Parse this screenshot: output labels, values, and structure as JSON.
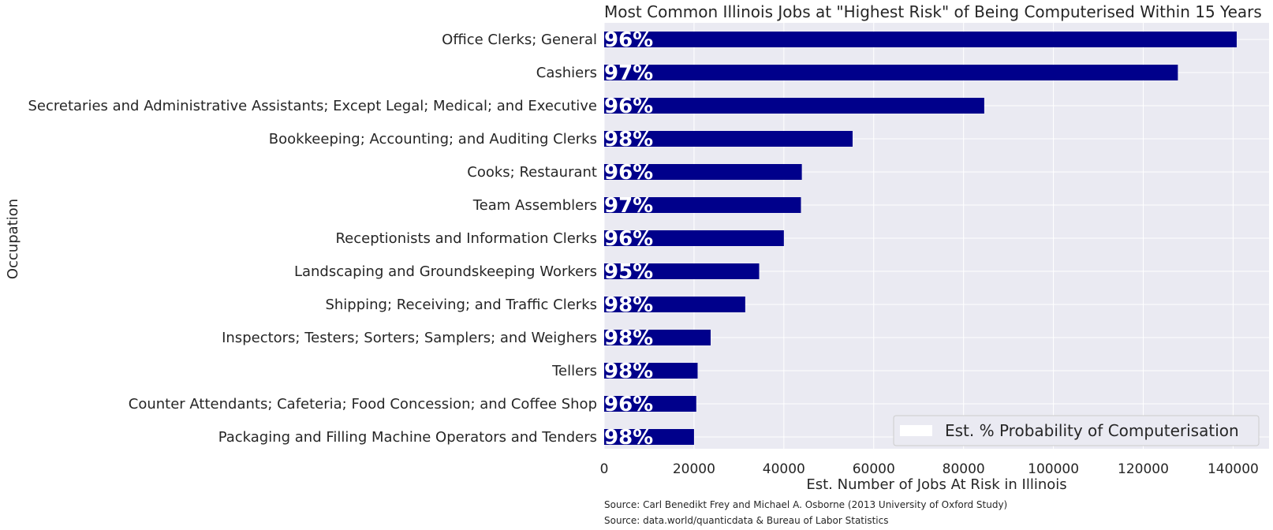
{
  "chart_data": {
    "type": "bar",
    "orientation": "horizontal",
    "title": "Most Common Illinois Jobs at \"Highest Risk\" of Being Computerised Within 15 Years",
    "xlabel": "Est. Number of Jobs At Risk in Illinois",
    "ylabel": "Occupation",
    "xlim": [
      0,
      148000
    ],
    "xticks": [
      0,
      20000,
      40000,
      60000,
      80000,
      100000,
      120000,
      140000
    ],
    "grid": true,
    "legend": {
      "position": "bottom-right",
      "entries": [
        "Est. % Probability of Computerisation"
      ]
    },
    "bar_color": "#00008b",
    "background_color": "#eaeaf2",
    "categories": [
      "Office Clerks; General",
      "Cashiers",
      "Secretaries and Administrative Assistants; Except Legal; Medical; and Executive",
      "Bookkeeping; Accounting; and Auditing Clerks",
      "Cooks; Restaurant",
      "Team Assemblers",
      "Receptionists and Information Clerks",
      "Landscaping and Groundskeeping Workers",
      "Shipping; Receiving; and Traffic Clerks",
      "Inspectors; Testers; Sorters; Samplers; and Weighers",
      "Tellers",
      "Counter Attendants; Cafeteria; Food Concession; and Coffee Shop",
      "Packaging and Filling Machine Operators and Tenders"
    ],
    "values": [
      140800,
      127700,
      84600,
      55300,
      44000,
      43800,
      40000,
      34500,
      31400,
      23700,
      20800,
      20500,
      20000
    ],
    "data_labels": [
      "96%",
      "97%",
      "96%",
      "98%",
      "96%",
      "97%",
      "96%",
      "95%",
      "98%",
      "98%",
      "98%",
      "96%",
      "98%"
    ]
  },
  "sources": [
    "Source: Carl Benedikt Frey and Michael A. Osborne (2013 University of Oxford Study)",
    "Source: data.world/quanticdata & Bureau of Labor Statistics"
  ]
}
